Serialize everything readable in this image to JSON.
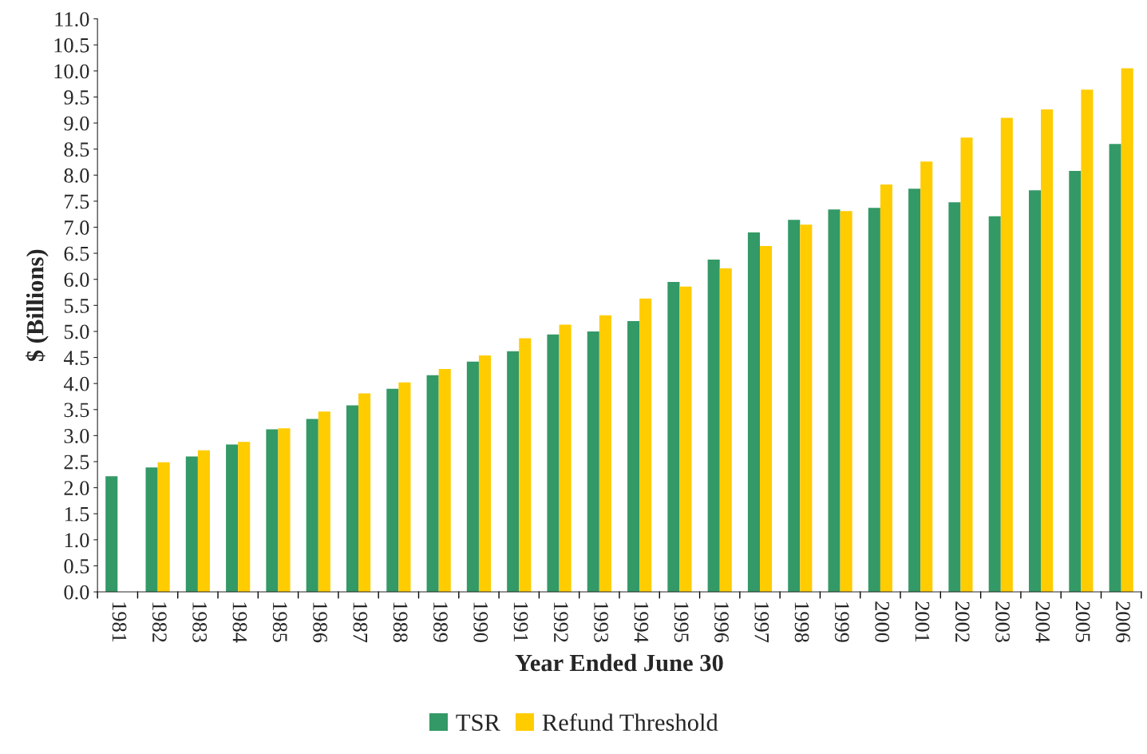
{
  "chart_data": {
    "type": "bar",
    "xlabel": "Year Ended June 30",
    "ylabel": "$ (Billions)",
    "categories": [
      "1981",
      "1982",
      "1983",
      "1984",
      "1985",
      "1986",
      "1987",
      "1988",
      "1989",
      "1990",
      "1991",
      "1992",
      "1993",
      "1994",
      "1995",
      "1996",
      "1997",
      "1998",
      "1999",
      "2000",
      "2001",
      "2002",
      "2003",
      "2004",
      "2005",
      "2006"
    ],
    "series": [
      {
        "name": "TSR",
        "color": "#339966",
        "values": [
          2.22,
          2.39,
          2.6,
          2.83,
          3.12,
          3.32,
          3.58,
          3.9,
          4.16,
          4.42,
          4.62,
          4.94,
          5.0,
          5.2,
          5.95,
          6.38,
          6.9,
          7.14,
          7.34,
          7.37,
          7.74,
          7.48,
          7.21,
          7.71,
          8.08,
          8.6
        ]
      },
      {
        "name": "Refund Threshold",
        "color": "#ffcc00",
        "values": [
          null,
          2.49,
          2.72,
          2.88,
          3.14,
          3.46,
          3.81,
          4.02,
          4.28,
          4.54,
          4.87,
          5.13,
          5.31,
          5.63,
          5.86,
          6.21,
          6.64,
          7.05,
          7.31,
          7.82,
          8.26,
          8.72,
          9.1,
          9.26,
          9.64,
          10.05
        ]
      }
    ],
    "ylim": [
      0,
      11
    ],
    "yticks": [
      {
        "value": 0,
        "label": "0.0"
      },
      {
        "value": 0.5,
        "label": "0.5"
      },
      {
        "value": 1,
        "label": "1.0"
      },
      {
        "value": 1.5,
        "label": "1.5"
      },
      {
        "value": 2,
        "label": "2.0"
      },
      {
        "value": 2.5,
        "label": "2.5"
      },
      {
        "value": 3,
        "label": "3.0"
      },
      {
        "value": 3.5,
        "label": "3.5"
      },
      {
        "value": 4,
        "label": "4.0"
      },
      {
        "value": 4.5,
        "label": "4.5"
      },
      {
        "value": 5,
        "label": "5.0"
      },
      {
        "value": 5.5,
        "label": "5.5"
      },
      {
        "value": 6,
        "label": "6.0"
      },
      {
        "value": 6.5,
        "label": "6.5"
      },
      {
        "value": 7,
        "label": "7.0"
      },
      {
        "value": 7.5,
        "label": "7.5"
      },
      {
        "value": 8,
        "label": "8.0"
      },
      {
        "value": 8.5,
        "label": "8.5"
      },
      {
        "value": 9,
        "label": "9.0"
      },
      {
        "value": 9.5,
        "label": "9.5"
      },
      {
        "value": 10,
        "label": "10.0"
      },
      {
        "value": 10.5,
        "label": "10.5"
      },
      {
        "value": 11,
        "label": "11.0"
      }
    ],
    "grid": false,
    "legend": "bottom"
  }
}
